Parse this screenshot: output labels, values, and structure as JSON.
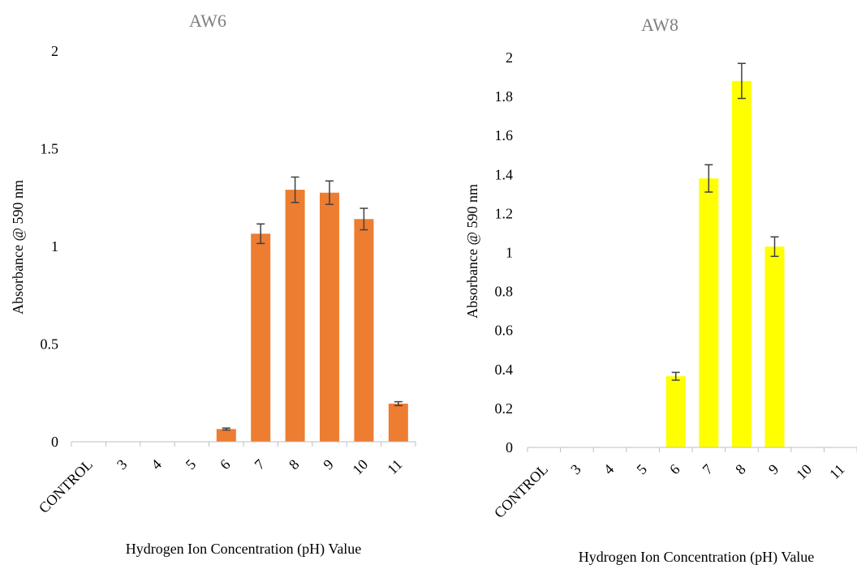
{
  "chart_data": [
    {
      "type": "bar",
      "title": "AW6",
      "xlabel": "Hydrogen Ion Concentration (pH) Value",
      "ylabel": "Absorbance @ 590 nm",
      "categories": [
        "CONTROL",
        "3",
        "4",
        "5",
        "6",
        "7",
        "8",
        "9",
        "10",
        "11"
      ],
      "values": [
        0,
        0,
        0,
        0,
        0.065,
        1.065,
        1.29,
        1.275,
        1.14,
        0.195
      ],
      "errors": [
        0,
        0,
        0,
        0,
        0.005,
        0.05,
        0.065,
        0.06,
        0.055,
        0.01
      ],
      "ylim": [
        0,
        2
      ],
      "yticks": [
        "0",
        "0.5",
        "1",
        "1.5",
        "2"
      ],
      "color": "#ed7d31",
      "grid": false,
      "legend": "none"
    },
    {
      "type": "bar",
      "title": "AW8",
      "xlabel": "Hydrogen Ion Concentration (pH) Value",
      "ylabel": "Absorbance @ 590 nm",
      "categories": [
        "CONTROL",
        "3",
        "4",
        "5",
        "6",
        "7",
        "8",
        "9",
        "10",
        "11"
      ],
      "values": [
        0,
        0,
        0,
        0,
        0.365,
        1.38,
        1.88,
        1.03,
        0,
        0
      ],
      "errors": [
        0,
        0,
        0,
        0,
        0.02,
        0.07,
        0.09,
        0.05,
        0,
        0
      ],
      "ylim": [
        0,
        2
      ],
      "yticks": [
        "0",
        "0.2",
        "0.4",
        "0.6",
        "0.8",
        "1",
        "1.2",
        "1.4",
        "1.6",
        "1.8",
        "2"
      ],
      "color": "#ffff00",
      "grid": false,
      "legend": "none"
    }
  ]
}
